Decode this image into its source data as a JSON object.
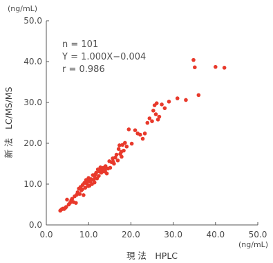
{
  "chart_data": {
    "type": "scatter",
    "xlabel": "現 法　HPLC",
    "ylabel": "新 法　LC/MS/MS",
    "x_unit": "(ng/mL)",
    "y_unit": "(ng/mL)",
    "xlim": [
      0,
      50
    ],
    "ylim": [
      0,
      50
    ],
    "x_ticks": [
      "0.0",
      "10.0",
      "20.0",
      "30.0",
      "40.0",
      "50.0"
    ],
    "y_ticks": [
      "0.0",
      "10.0",
      "20.0",
      "30.0",
      "40.0",
      "50.0"
    ],
    "grid": false,
    "annotations": [
      "n = 101",
      "Y = 1.000X−0.004",
      "r = 0.986"
    ],
    "point_color": "#e8392b",
    "series": [
      {
        "points": [
          [
            3.3,
            3.5
          ],
          [
            3.6,
            3.8
          ],
          [
            3.9,
            4.0
          ],
          [
            4.2,
            3.9
          ],
          [
            4.5,
            4.2
          ],
          [
            4.7,
            4.4
          ],
          [
            4.9,
            6.2
          ],
          [
            5.3,
            5.0
          ],
          [
            5.6,
            5.4
          ],
          [
            5.9,
            6.0
          ],
          [
            6.1,
            6.4
          ],
          [
            6.4,
            5.6
          ],
          [
            6.7,
            7.0
          ],
          [
            7.0,
            5.4
          ],
          [
            7.4,
            8.0
          ],
          [
            7.7,
            8.9
          ],
          [
            7.9,
            7.6
          ],
          [
            8.1,
            9.3
          ],
          [
            8.3,
            8.5
          ],
          [
            8.6,
            9.8
          ],
          [
            8.8,
            7.3
          ],
          [
            9.0,
            10.3
          ],
          [
            9.2,
            9.1
          ],
          [
            9.4,
            11.0
          ],
          [
            9.6,
            10.1
          ],
          [
            9.8,
            10.7
          ],
          [
            10.0,
            11.5
          ],
          [
            10.2,
            9.6
          ],
          [
            10.4,
            10.6
          ],
          [
            10.6,
            11.2
          ],
          [
            10.8,
            10.0
          ],
          [
            11.0,
            12.2
          ],
          [
            11.2,
            11.0
          ],
          [
            11.4,
            10.4
          ],
          [
            11.6,
            12.4
          ],
          [
            11.8,
            12.8
          ],
          [
            12.0,
            11.4
          ],
          [
            12.2,
            13.6
          ],
          [
            12.4,
            12.0
          ],
          [
            12.6,
            13.1
          ],
          [
            12.8,
            14.1
          ],
          [
            13.0,
            12.8
          ],
          [
            13.3,
            13.4
          ],
          [
            13.5,
            14.0
          ],
          [
            13.7,
            13.1
          ],
          [
            14.0,
            14.4
          ],
          [
            14.3,
            12.6
          ],
          [
            14.6,
            13.8
          ],
          [
            14.9,
            15.6
          ],
          [
            15.1,
            14.0
          ],
          [
            15.4,
            15.4
          ],
          [
            15.7,
            16.3
          ],
          [
            16.0,
            15.0
          ],
          [
            16.3,
            16.5
          ],
          [
            16.6,
            17.2
          ],
          [
            16.9,
            15.8
          ],
          [
            17.1,
            18.6
          ],
          [
            17.3,
            19.5
          ],
          [
            17.5,
            17.4
          ],
          [
            17.8,
            16.7
          ],
          [
            18.0,
            19.6
          ],
          [
            18.3,
            18.2
          ],
          [
            18.6,
            20.1
          ],
          [
            19.0,
            19.2
          ],
          [
            19.5,
            23.4
          ],
          [
            20.2,
            19.9
          ],
          [
            21.0,
            23.2
          ],
          [
            21.6,
            22.4
          ],
          [
            22.2,
            22.1
          ],
          [
            22.8,
            21.1
          ],
          [
            23.3,
            22.4
          ],
          [
            23.9,
            25.0
          ],
          [
            24.4,
            26.1
          ],
          [
            25.0,
            25.4
          ],
          [
            25.3,
            28.0
          ],
          [
            25.6,
            29.3
          ],
          [
            25.9,
            27.1
          ],
          [
            26.1,
            29.8
          ],
          [
            26.4,
            25.8
          ],
          [
            26.7,
            26.5
          ],
          [
            27.3,
            29.5
          ],
          [
            28.0,
            28.6
          ],
          [
            29.0,
            30.2
          ],
          [
            31.0,
            31.0
          ],
          [
            33.0,
            30.6
          ],
          [
            34.8,
            40.4
          ],
          [
            35.1,
            38.6
          ],
          [
            36.0,
            31.8
          ],
          [
            40.0,
            38.7
          ],
          [
            42.1,
            38.5
          ],
          [
            11.5,
            11.6
          ],
          [
            8.5,
            8.7
          ],
          [
            12.9,
            13.3
          ],
          [
            15.8,
            15.5
          ],
          [
            10.5,
            10.9
          ],
          [
            9.9,
            9.5
          ],
          [
            14.2,
            13.9
          ],
          [
            6.0,
            5.8
          ],
          [
            7.2,
            7.4
          ],
          [
            13.9,
            13.2
          ],
          [
            17.7,
            17.9
          ]
        ]
      }
    ]
  }
}
